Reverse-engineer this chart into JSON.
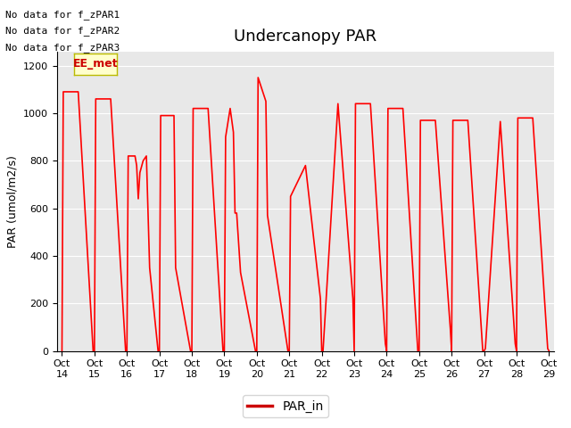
{
  "title": "Undercanopy PAR",
  "ylabel": "PAR (umol/m2/s)",
  "ylim": [
    0,
    1260
  ],
  "yticks": [
    0,
    200,
    400,
    600,
    800,
    1000,
    1200
  ],
  "xtick_labels": [
    "Oct 14",
    "Oct 15",
    "Oct 16",
    "Oct 17",
    "Oct 18",
    "Oct 19",
    "Oct 20",
    "Oct 21",
    "Oct 22",
    "Oct 23",
    "Oct 24",
    "Oct 25",
    "Oct 26",
    "Oct 27",
    "Oct 28",
    "Oct 29"
  ],
  "legend_label": "PAR_in",
  "line_color": "#ff0000",
  "legend_line_color": "#cc0000",
  "no_data_texts": [
    "No data for f_zPAR1",
    "No data for f_zPAR2",
    "No data for f_zPAR3"
  ],
  "ee_met_label": "EE_met",
  "bg_color": "#e8e8e8",
  "fig_bg_color": "#ffffff",
  "title_fontsize": 13,
  "label_fontsize": 9,
  "tick_fontsize": 8,
  "xlim": [
    13.85,
    29.15
  ],
  "x_values": [
    14.0,
    14.04,
    14.5,
    14.96,
    15.0,
    15.04,
    15.5,
    15.96,
    16.0,
    16.04,
    16.25,
    16.3,
    16.35,
    16.4,
    16.5,
    16.6,
    16.7,
    16.96,
    17.0,
    17.04,
    17.45,
    17.5,
    17.96,
    18.0,
    18.04,
    18.5,
    18.96,
    19.0,
    19.04,
    19.18,
    19.28,
    19.33,
    19.38,
    19.5,
    19.96,
    20.0,
    20.04,
    20.28,
    20.33,
    20.96,
    21.0,
    21.04,
    21.5,
    21.96,
    22.0,
    22.04,
    22.5,
    22.96,
    23.0,
    23.04,
    23.5,
    23.96,
    24.0,
    24.04,
    24.5,
    24.96,
    25.0,
    25.04,
    25.5,
    25.96,
    26.0,
    26.04,
    26.5,
    26.96,
    27.0,
    27.04,
    27.5,
    27.96,
    28.0,
    28.04,
    28.5,
    28.96,
    29.0
  ],
  "y_values": [
    0,
    1090,
    1090,
    0,
    0,
    1060,
    1060,
    0,
    0,
    820,
    820,
    780,
    640,
    750,
    800,
    820,
    350,
    0,
    0,
    990,
    990,
    350,
    0,
    0,
    1020,
    1020,
    0,
    0,
    900,
    1020,
    920,
    580,
    580,
    330,
    0,
    0,
    1150,
    1050,
    570,
    0,
    0,
    650,
    780,
    220,
    0,
    0,
    1040,
    220,
    0,
    1040,
    1040,
    30,
    0,
    1020,
    1020,
    0,
    0,
    970,
    970,
    95,
    0,
    970,
    970,
    0,
    0,
    10,
    965,
    30,
    0,
    980,
    980,
    10,
    0
  ]
}
